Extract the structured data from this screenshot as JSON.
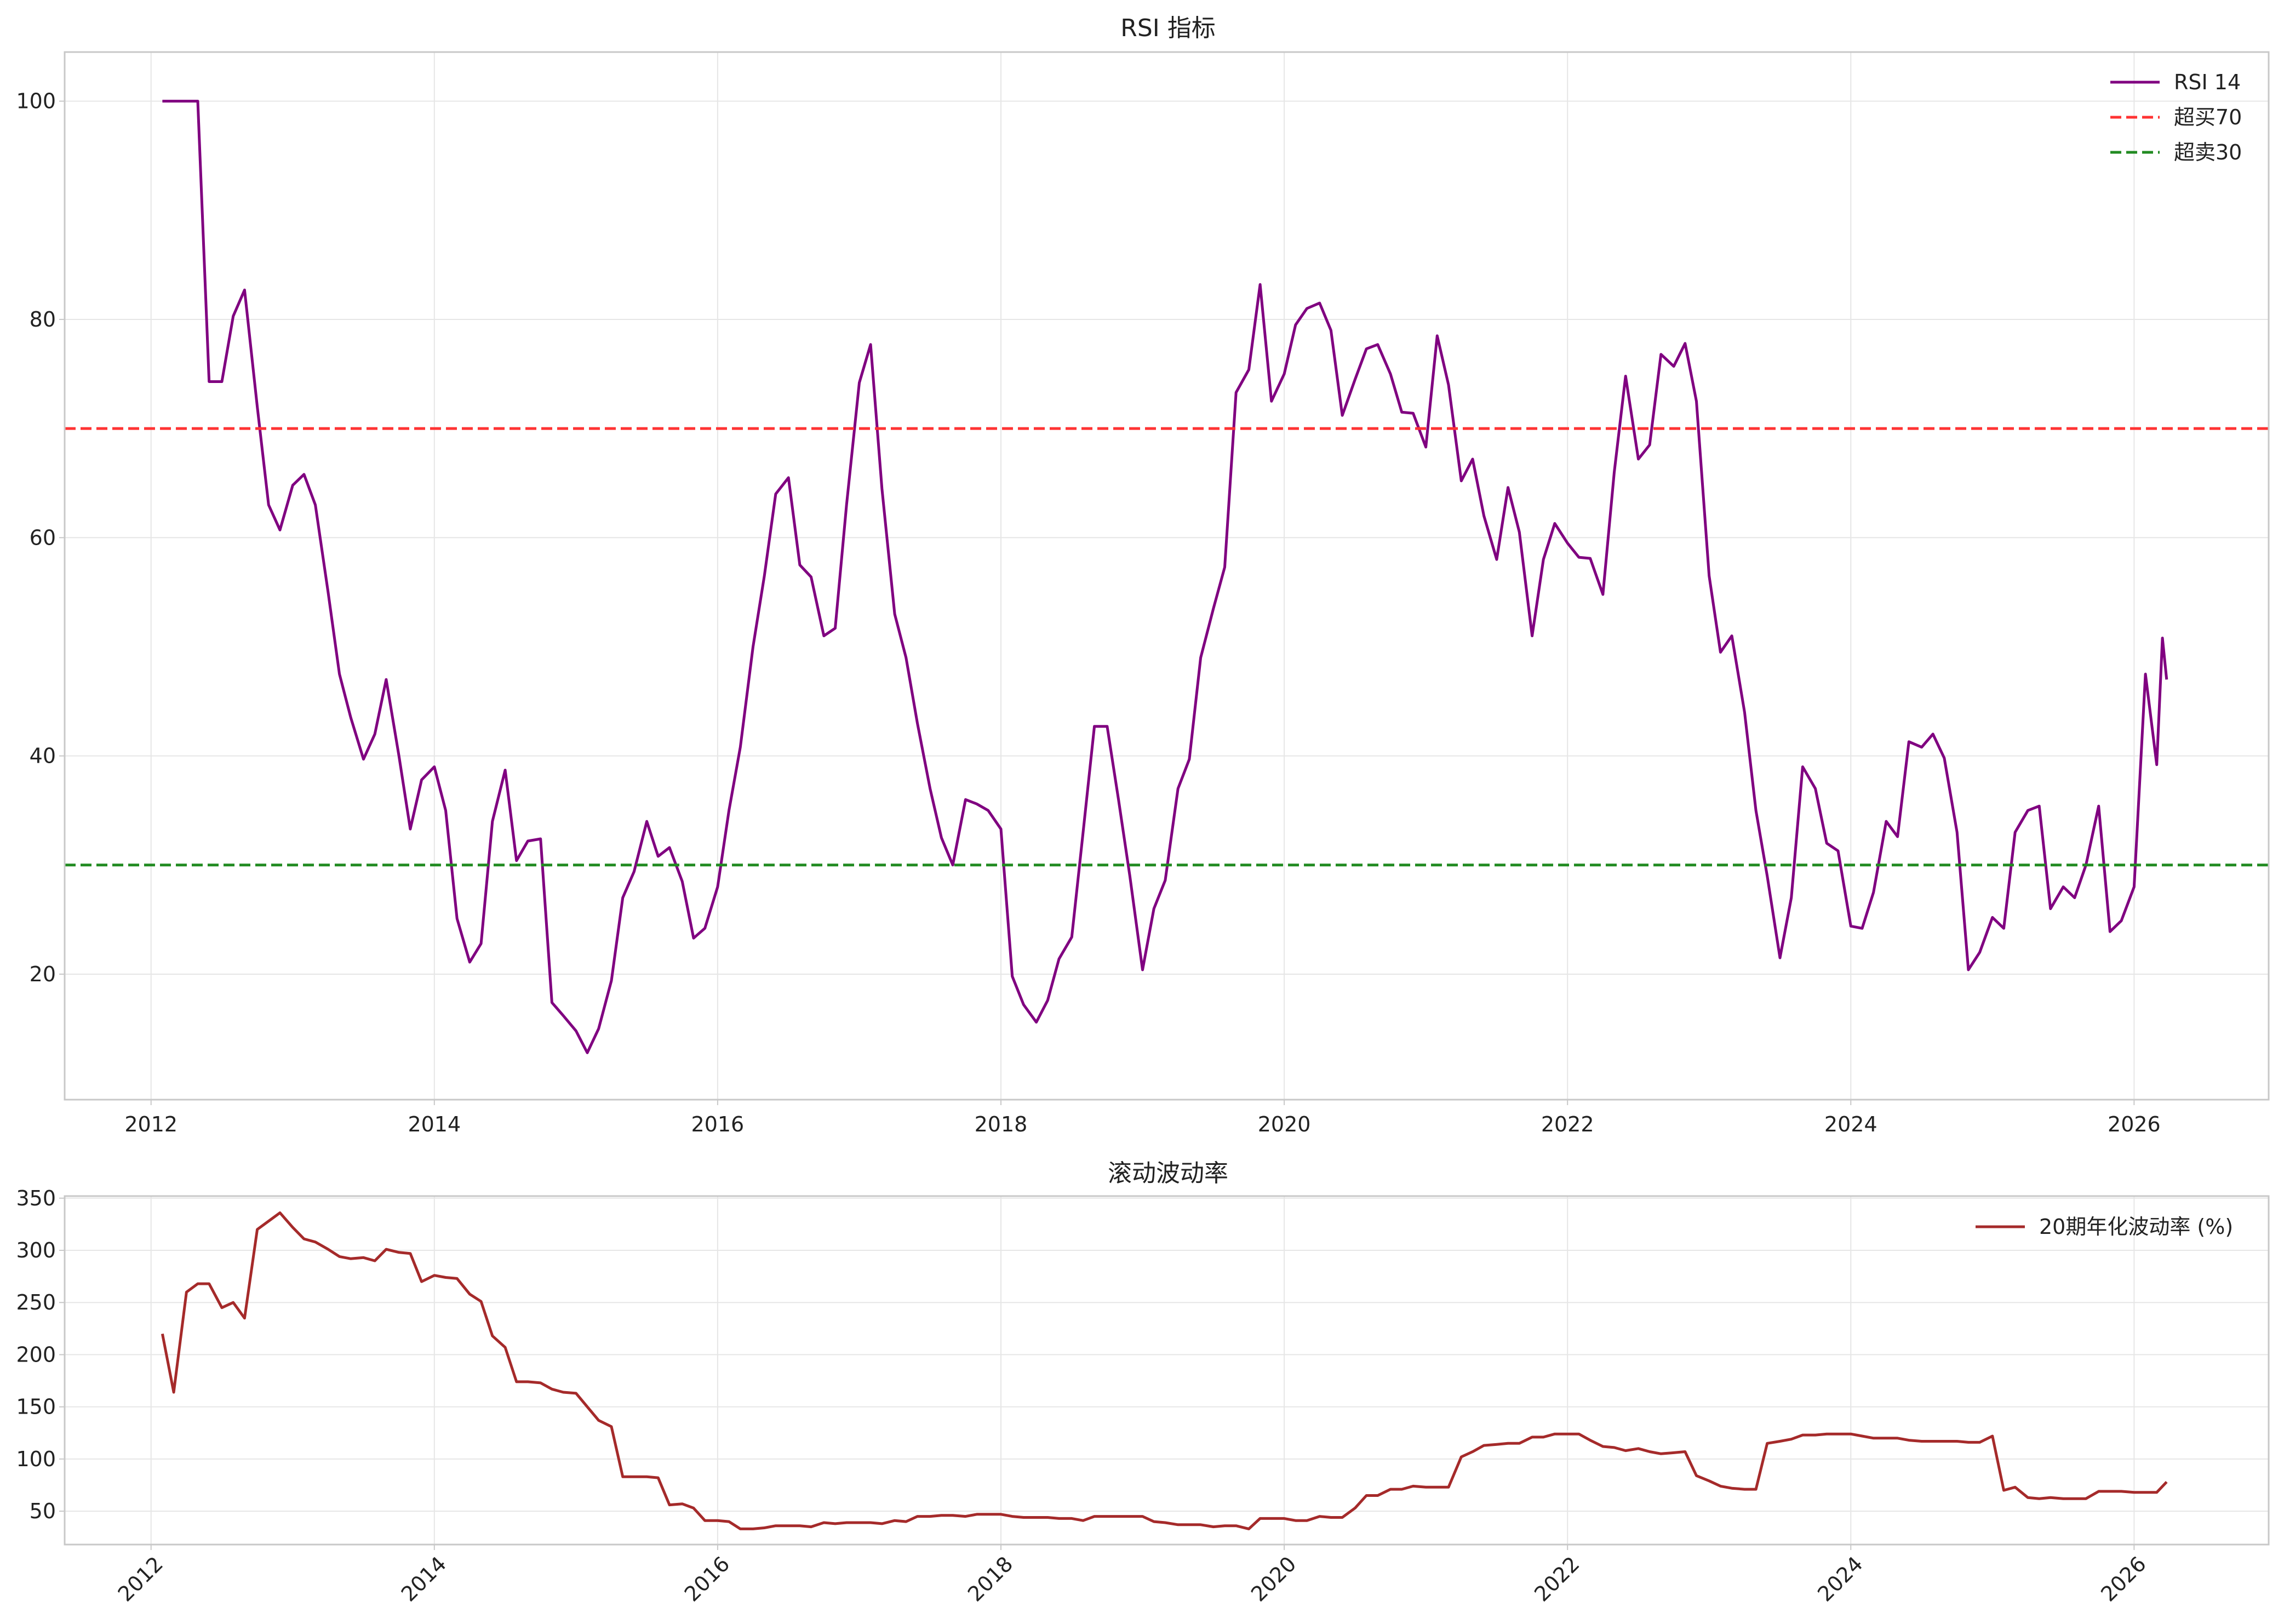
{
  "chart_data": [
    {
      "type": "line",
      "title": "RSI 指标",
      "xlabel": "",
      "ylabel": "",
      "xlim": [
        2011.39,
        2026.95
      ],
      "ylim": [
        8.5,
        104.5
      ],
      "x_ticks": [
        2012,
        2014,
        2016,
        2018,
        2020,
        2022,
        2024,
        2026
      ],
      "x_tick_labels": [
        "2012",
        "2014",
        "2016",
        "2018",
        "2020",
        "2022",
        "2024",
        "2026"
      ],
      "y_ticks": [
        20,
        40,
        60,
        80,
        100
      ],
      "y_tick_labels": [
        "20",
        "40",
        "60",
        "80",
        "100"
      ],
      "grid": true,
      "legend": "top-right",
      "series": [
        {
          "name": "RSI 14",
          "color": "#800080",
          "style": "solid",
          "x": [
            2012.08,
            2012.16,
            2012.25,
            2012.33,
            2012.41,
            2012.5,
            2012.58,
            2012.66,
            2012.75,
            2012.83,
            2012.91,
            2013.0,
            2013.08,
            2013.16,
            2013.25,
            2013.33,
            2013.41,
            2013.5,
            2013.58,
            2013.66,
            2013.75,
            2013.83,
            2013.91,
            2014.0,
            2014.08,
            2014.16,
            2014.25,
            2014.33,
            2014.41,
            2014.5,
            2014.58,
            2014.66,
            2014.75,
            2014.83,
            2014.91,
            2015.0,
            2015.08,
            2015.16,
            2015.25,
            2015.33,
            2015.41,
            2015.5,
            2015.58,
            2015.66,
            2015.75,
            2015.83,
            2015.91,
            2016.0,
            2016.08,
            2016.16,
            2016.25,
            2016.33,
            2016.41,
            2016.5,
            2016.58,
            2016.66,
            2016.75,
            2016.83,
            2016.91,
            2017.0,
            2017.08,
            2017.16,
            2017.25,
            2017.33,
            2017.41,
            2017.5,
            2017.58,
            2017.66,
            2017.75,
            2017.83,
            2017.91,
            2018.0,
            2018.08,
            2018.16,
            2018.25,
            2018.33,
            2018.41,
            2018.5,
            2018.58,
            2018.66,
            2018.75,
            2018.83,
            2018.91,
            2019.0,
            2019.08,
            2019.16,
            2019.25,
            2019.33,
            2019.41,
            2019.5,
            2019.58,
            2019.66,
            2019.75,
            2019.83,
            2019.91,
            2020.0,
            2020.08,
            2020.16,
            2020.25,
            2020.33,
            2020.41,
            2020.5,
            2020.58,
            2020.66,
            2020.75,
            2020.83,
            2020.91,
            2021.0,
            2021.08,
            2021.16,
            2021.25,
            2021.33,
            2021.41,
            2021.5,
            2021.58,
            2021.66,
            2021.75,
            2021.83,
            2021.91,
            2022.0,
            2022.08,
            2022.16,
            2022.25,
            2022.33,
            2022.41,
            2022.5,
            2022.58,
            2022.66,
            2022.75,
            2022.83,
            2022.91,
            2023.0,
            2023.08,
            2023.16,
            2023.25,
            2023.33,
            2023.41,
            2023.5,
            2023.58,
            2023.66,
            2023.75,
            2023.83,
            2023.91,
            2024.0,
            2024.08,
            2024.16,
            2024.25,
            2024.33,
            2024.41,
            2024.5,
            2024.58,
            2024.66,
            2024.75,
            2024.83,
            2024.91,
            2025.0,
            2025.08,
            2025.16,
            2025.25,
            2025.33,
            2025.41,
            2025.5,
            2025.58,
            2025.66,
            2025.75,
            2025.83,
            2025.91,
            2026.0,
            2026.08,
            2026.16,
            2026.2,
            2026.23
          ],
          "y": [
            100,
            100,
            100,
            100,
            74.3,
            74.3,
            80.3,
            82.7,
            72.0,
            63.0,
            60.7,
            64.8,
            65.8,
            63.0,
            55.0,
            47.5,
            43.5,
            39.7,
            42.0,
            47.0,
            40.0,
            33.3,
            37.8,
            39.0,
            35.0,
            25.1,
            21.1,
            22.8,
            34.0,
            38.7,
            30.4,
            32.2,
            32.4,
            17.4,
            16.2,
            14.8,
            12.8,
            15.0,
            19.4,
            27.0,
            29.4,
            34.0,
            30.8,
            31.6,
            28.5,
            23.3,
            24.2,
            28.0,
            35.0,
            40.8,
            50.0,
            56.5,
            64.0,
            65.5,
            57.5,
            56.4,
            51.0,
            51.7,
            63.0,
            74.2,
            77.7,
            64.5,
            53.0,
            49.0,
            43.0,
            37.0,
            32.5,
            30.0,
            36.0,
            35.6,
            35.0,
            33.3,
            19.8,
            17.2,
            15.6,
            17.6,
            21.4,
            23.4,
            33.0,
            42.7,
            42.7,
            36.0,
            29.0,
            20.4,
            26.0,
            28.6,
            37.0,
            39.7,
            49.0,
            53.5,
            57.3,
            73.3,
            75.4,
            83.2,
            72.5,
            75.0,
            79.5,
            81.0,
            81.5,
            79.0,
            71.2,
            74.5,
            77.3,
            77.7,
            75.0,
            71.5,
            71.4,
            68.3,
            78.5,
            74.0,
            65.2,
            67.2,
            62.0,
            58.0,
            64.6,
            60.5,
            51.0,
            58.0,
            61.3,
            59.5,
            58.2,
            58.1,
            54.8,
            66.0,
            74.8,
            67.2,
            68.5,
            76.8,
            75.7,
            77.8,
            72.5,
            56.5,
            49.5,
            51.0,
            44.0,
            35.0,
            29.0,
            21.5,
            27.0,
            39.0,
            37.0,
            32.0,
            31.3,
            24.4,
            24.2,
            27.5,
            34.0,
            32.6,
            41.3,
            40.8,
            42.0,
            39.8,
            33.0,
            20.4,
            22.0,
            25.2,
            24.2,
            33.0,
            35.0,
            35.4,
            26.0,
            28.0,
            27.0,
            30.0,
            35.4,
            23.9,
            24.9,
            28.0,
            47.5,
            39.2,
            50.8,
            47.0
          ]
        },
        {
          "name": "超买70",
          "color": "#ff3333",
          "style": "dashed",
          "x": [
            2011.39,
            2026.95
          ],
          "y": [
            70,
            70
          ]
        },
        {
          "name": "超卖30",
          "color": "#228b22",
          "style": "dashed",
          "x": [
            2011.39,
            2026.95
          ],
          "y": [
            30,
            30
          ]
        }
      ]
    },
    {
      "type": "line",
      "title": "滚动波动率",
      "xlabel": "",
      "ylabel": "",
      "xlim": [
        2011.39,
        2026.95
      ],
      "ylim": [
        18,
        352
      ],
      "x_ticks": [
        2012,
        2014,
        2016,
        2018,
        2020,
        2022,
        2024,
        2026
      ],
      "x_tick_labels": [
        "2012",
        "2014",
        "2016",
        "2018",
        "2020",
        "2022",
        "2024",
        "2026"
      ],
      "x_tick_rotation": 45,
      "y_ticks": [
        50,
        100,
        150,
        200,
        250,
        300,
        350
      ],
      "y_tick_labels": [
        "50",
        "100",
        "150",
        "200",
        "250",
        "300",
        "350"
      ],
      "grid": true,
      "legend": "top-right",
      "series": [
        {
          "name": "20期年化波动率 (%)",
          "color": "#a52a2a",
          "style": "solid",
          "x": [
            2012.08,
            2012.16,
            2012.25,
            2012.33,
            2012.41,
            2012.5,
            2012.58,
            2012.66,
            2012.75,
            2012.83,
            2012.91,
            2013.0,
            2013.08,
            2013.16,
            2013.25,
            2013.33,
            2013.41,
            2013.5,
            2013.58,
            2013.66,
            2013.75,
            2013.83,
            2013.91,
            2014.0,
            2014.08,
            2014.16,
            2014.25,
            2014.33,
            2014.41,
            2014.5,
            2014.58,
            2014.66,
            2014.75,
            2014.83,
            2014.91,
            2015.0,
            2015.08,
            2015.16,
            2015.25,
            2015.33,
            2015.41,
            2015.5,
            2015.58,
            2015.66,
            2015.75,
            2015.83,
            2015.91,
            2016.0,
            2016.08,
            2016.16,
            2016.25,
            2016.33,
            2016.41,
            2016.5,
            2016.58,
            2016.66,
            2016.75,
            2016.83,
            2016.91,
            2017.0,
            2017.08,
            2017.16,
            2017.25,
            2017.33,
            2017.41,
            2017.5,
            2017.58,
            2017.66,
            2017.75,
            2017.83,
            2017.91,
            2018.0,
            2018.08,
            2018.16,
            2018.25,
            2018.33,
            2018.41,
            2018.5,
            2018.58,
            2018.66,
            2018.75,
            2018.83,
            2018.91,
            2019.0,
            2019.08,
            2019.16,
            2019.25,
            2019.33,
            2019.41,
            2019.5,
            2019.58,
            2019.66,
            2019.75,
            2019.83,
            2019.91,
            2020.0,
            2020.08,
            2020.16,
            2020.25,
            2020.33,
            2020.41,
            2020.5,
            2020.58,
            2020.66,
            2020.75,
            2020.83,
            2020.91,
            2021.0,
            2021.08,
            2021.16,
            2021.25,
            2021.33,
            2021.41,
            2021.5,
            2021.58,
            2021.66,
            2021.75,
            2021.83,
            2021.91,
            2022.0,
            2022.08,
            2022.16,
            2022.25,
            2022.33,
            2022.41,
            2022.5,
            2022.58,
            2022.66,
            2022.75,
            2022.83,
            2022.91,
            2023.0,
            2023.08,
            2023.16,
            2023.25,
            2023.33,
            2023.41,
            2023.5,
            2023.58,
            2023.66,
            2023.75,
            2023.83,
            2023.91,
            2024.0,
            2024.08,
            2024.16,
            2024.25,
            2024.33,
            2024.41,
            2024.5,
            2024.58,
            2024.66,
            2024.75,
            2024.83,
            2024.91,
            2025.0,
            2025.08,
            2025.16,
            2025.25,
            2025.33,
            2025.41,
            2025.5,
            2025.58,
            2025.66,
            2025.75,
            2025.83,
            2025.91,
            2026.0,
            2026.08,
            2026.16,
            2026.23
          ],
          "y": [
            220,
            164,
            260,
            268,
            268,
            245,
            250,
            235,
            320,
            328,
            336,
            322,
            311,
            308,
            301,
            294,
            292,
            293,
            290,
            301,
            298,
            297,
            270,
            276,
            274,
            273,
            258,
            251,
            218,
            207,
            174,
            174,
            173,
            167,
            164,
            163,
            150,
            137,
            131,
            83,
            83,
            83,
            82,
            56,
            57,
            53,
            41,
            41,
            40,
            33,
            33,
            34,
            36,
            36,
            36,
            35,
            39,
            38,
            39,
            39,
            39,
            38,
            41,
            40,
            45,
            45,
            46,
            46,
            45,
            47,
            47,
            47,
            45,
            44,
            44,
            44,
            43,
            43,
            41,
            45,
            45,
            45,
            45,
            45,
            40,
            39,
            37,
            37,
            37,
            35,
            36,
            36,
            33,
            43,
            43,
            43,
            41,
            41,
            45,
            44,
            44,
            53,
            65,
            65,
            71,
            71,
            74,
            73,
            73,
            73,
            102,
            107,
            113,
            114,
            115,
            115,
            121,
            121,
            124,
            124,
            124,
            118,
            112,
            111,
            108,
            110,
            107,
            105,
            106,
            107,
            84,
            79,
            74,
            72,
            71,
            71,
            115,
            117,
            119,
            123,
            123,
            124,
            124,
            124,
            122,
            120,
            120,
            120,
            118,
            117,
            117,
            117,
            117,
            116,
            116,
            122,
            70,
            73,
            63,
            62,
            63,
            62,
            62,
            62,
            69,
            69,
            69,
            68,
            68,
            68,
            78
          ]
        }
      ]
    }
  ]
}
